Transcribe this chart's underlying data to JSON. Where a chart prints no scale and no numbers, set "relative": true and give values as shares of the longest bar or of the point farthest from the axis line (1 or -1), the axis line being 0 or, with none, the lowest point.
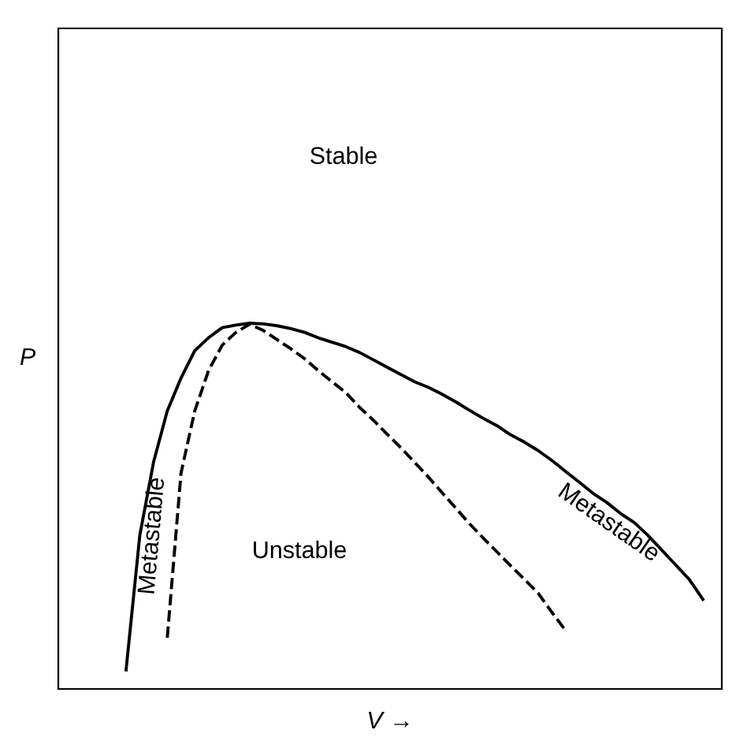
{
  "chart_data": {
    "type": "line",
    "relative": true,
    "xlabel": "V →",
    "ylabel": "P",
    "categories": [
      null,
      null,
      null,
      null,
      null,
      null,
      null,
      null,
      null,
      null,
      null,
      null,
      null,
      null,
      null,
      null,
      null,
      null,
      null,
      null,
      null,
      null,
      null,
      null,
      null,
      null,
      null,
      null,
      null,
      null,
      null,
      null,
      null,
      null,
      null,
      null,
      null,
      null,
      null,
      null,
      null,
      null,
      null
    ],
    "tick_labels": false,
    "legend": false,
    "marker": "none",
    "series": [
      {
        "color": "#000000",
        "line_style": "solid",
        "values": [
          0.052,
          0.42,
          0.62,
          0.76,
          0.85,
          0.925,
          0.96,
          0.988,
          0.995,
          1.0,
          0.998,
          0.993,
          0.985,
          0.975,
          0.96,
          0.948,
          0.936,
          0.92,
          0.9,
          0.88,
          0.86,
          0.84,
          0.825,
          0.806,
          0.785,
          0.762,
          0.74,
          0.72,
          0.695,
          0.675,
          0.652,
          0.625,
          0.595,
          0.565,
          0.535,
          0.51,
          0.48,
          0.455,
          0.42,
          0.38,
          0.34,
          0.3,
          0.245
        ]
      },
      {
        "color": "#000000",
        "line_style": "dashed",
        "values": [
          null,
          null,
          null,
          0.14,
          0.59,
          0.76,
          0.87,
          0.94,
          0.975,
          0.997,
          0.98,
          0.955,
          0.93,
          0.903,
          0.87,
          0.84,
          0.81,
          0.77,
          0.735,
          0.697,
          0.66,
          0.62,
          0.58,
          0.537,
          0.495,
          0.452,
          0.413,
          0.375,
          0.337,
          0.3,
          0.262,
          0.21,
          0.16,
          null,
          null,
          null,
          null,
          null,
          null,
          null,
          null,
          null,
          null
        ]
      }
    ],
    "annotations": [
      "Stable",
      "Unstable",
      "Metastable",
      "Metastable"
    ]
  }
}
